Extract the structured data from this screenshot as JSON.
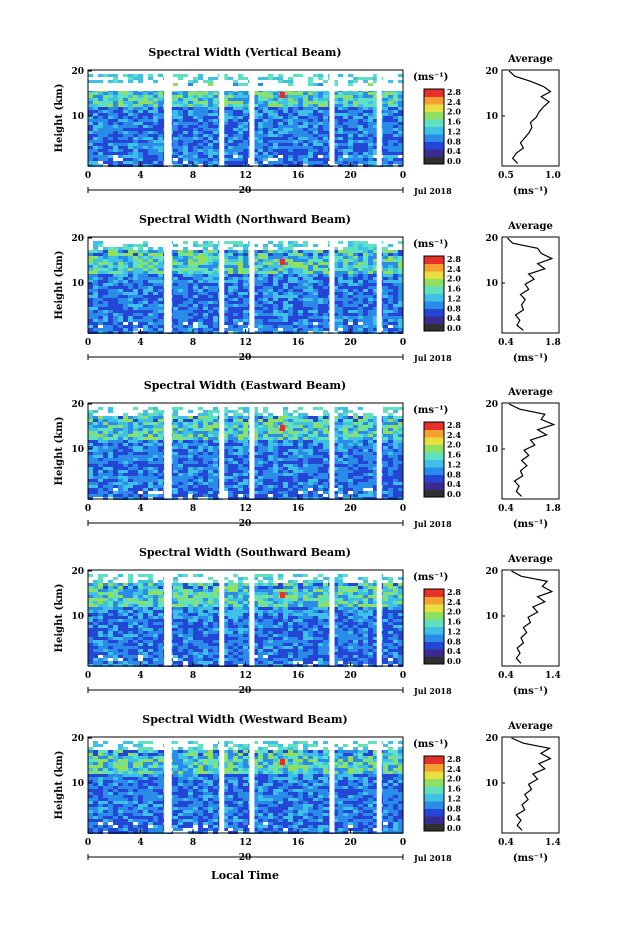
{
  "chart_data": {
    "type": "heatmap",
    "common": {
      "xlabel": "Local Time",
      "ylabel": "Height (km)",
      "x_ticks": [
        "0",
        "4",
        "8",
        "12",
        "16",
        "20",
        "0"
      ],
      "y_ticks": [
        "10",
        "20"
      ],
      "date_label": "Jul 2018",
      "date_tick": "20",
      "colorbar_unit": "(ms⁻¹)",
      "colorbar_ticks": [
        "0.0",
        "0.4",
        "0.8",
        "1.2",
        "1.6",
        "2.0",
        "2.4",
        "2.8"
      ],
      "average_title": "Average",
      "average_xlabel": "(ms⁻¹)",
      "average_yticks": [
        "10",
        "20"
      ],
      "colors": {
        "low": "#1f3cc8",
        "mid": "#3fb3e6",
        "high": "#f5e84a",
        "max": "#e8302a",
        "colorbar_stops": [
          "#303030",
          "#3b2a8f",
          "#2545d6",
          "#2a8be8",
          "#3fc0e6",
          "#5fe0c0",
          "#8fe060",
          "#e8e040",
          "#f5a030",
          "#e8302a"
        ]
      },
      "data_gaps_hours": [
        5.8,
        6.0,
        10.0,
        12.3,
        18.4,
        22.0
      ]
    },
    "panels": [
      {
        "title": "Spectral Width (Vertical Beam)",
        "avg_xticks": [
          "0.5",
          "1.0"
        ],
        "avg_xlim": [
          0.4,
          1.2
        ],
        "avg_profile": [
          [
            0.62,
            2
          ],
          [
            0.55,
            3
          ],
          [
            0.6,
            4
          ],
          [
            0.7,
            5
          ],
          [
            0.66,
            6
          ],
          [
            0.72,
            7
          ],
          [
            0.78,
            8
          ],
          [
            0.82,
            9
          ],
          [
            0.8,
            10
          ],
          [
            0.88,
            11
          ],
          [
            0.92,
            12
          ],
          [
            0.98,
            13
          ],
          [
            1.06,
            14
          ],
          [
            0.95,
            15
          ],
          [
            1.08,
            16
          ],
          [
            0.98,
            17
          ],
          [
            0.8,
            18
          ],
          [
            0.58,
            19
          ],
          [
            0.5,
            20
          ]
        ]
      },
      {
        "title": "Spectral Width (Northward Beam)",
        "avg_xticks": [
          "0.4",
          "1.8"
        ],
        "avg_xlim": [
          0.3,
          1.9
        ],
        "avg_profile": [
          [
            0.9,
            2
          ],
          [
            0.72,
            3
          ],
          [
            0.8,
            4
          ],
          [
            0.68,
            5
          ],
          [
            0.9,
            6
          ],
          [
            0.85,
            7
          ],
          [
            0.95,
            8
          ],
          [
            0.82,
            9
          ],
          [
            1.05,
            10
          ],
          [
            0.95,
            11
          ],
          [
            1.2,
            12
          ],
          [
            1.05,
            13
          ],
          [
            1.5,
            14
          ],
          [
            1.3,
            15
          ],
          [
            1.7,
            16
          ],
          [
            1.4,
            17
          ],
          [
            1.3,
            18
          ],
          [
            0.6,
            19
          ],
          [
            0.45,
            20
          ]
        ]
      },
      {
        "title": "Spectral Width (Eastward Beam)",
        "avg_xticks": [
          "0.4",
          "1.8"
        ],
        "avg_xlim": [
          0.3,
          1.9
        ],
        "avg_profile": [
          [
            0.85,
            2
          ],
          [
            0.7,
            3
          ],
          [
            0.78,
            4
          ],
          [
            0.65,
            5
          ],
          [
            0.88,
            6
          ],
          [
            0.82,
            7
          ],
          [
            1.0,
            8
          ],
          [
            0.85,
            9
          ],
          [
            1.05,
            10
          ],
          [
            0.92,
            11
          ],
          [
            1.22,
            12
          ],
          [
            1.1,
            13
          ],
          [
            1.55,
            14
          ],
          [
            1.3,
            15
          ],
          [
            1.75,
            16
          ],
          [
            1.4,
            17
          ],
          [
            1.5,
            18
          ],
          [
            0.8,
            19
          ],
          [
            0.5,
            20
          ]
        ]
      },
      {
        "title": "Spectral Width (Southward Beam)",
        "avg_xticks": [
          "0.4",
          "1.4"
        ],
        "avg_xlim": [
          0.3,
          1.5
        ],
        "avg_profile": [
          [
            0.7,
            2
          ],
          [
            0.6,
            3
          ],
          [
            0.68,
            4
          ],
          [
            0.62,
            5
          ],
          [
            0.75,
            6
          ],
          [
            0.7,
            7
          ],
          [
            0.82,
            8
          ],
          [
            0.75,
            9
          ],
          [
            0.9,
            10
          ],
          [
            0.85,
            11
          ],
          [
            1.05,
            12
          ],
          [
            0.95,
            13
          ],
          [
            1.2,
            14
          ],
          [
            1.05,
            15
          ],
          [
            1.35,
            16
          ],
          [
            1.15,
            17
          ],
          [
            1.25,
            18
          ],
          [
            0.7,
            19
          ],
          [
            0.5,
            20
          ]
        ]
      },
      {
        "title": "Spectral Width (Westward Beam)",
        "avg_xticks": [
          "0.4",
          "1.4"
        ],
        "avg_xlim": [
          0.3,
          1.5
        ],
        "avg_profile": [
          [
            0.72,
            2
          ],
          [
            0.62,
            3
          ],
          [
            0.7,
            4
          ],
          [
            0.6,
            5
          ],
          [
            0.78,
            6
          ],
          [
            0.72,
            7
          ],
          [
            0.85,
            8
          ],
          [
            0.78,
            9
          ],
          [
            0.92,
            10
          ],
          [
            0.86,
            11
          ],
          [
            1.05,
            12
          ],
          [
            0.95,
            13
          ],
          [
            1.2,
            14
          ],
          [
            1.08,
            15
          ],
          [
            1.32,
            16
          ],
          [
            1.12,
            17
          ],
          [
            1.3,
            18
          ],
          [
            0.75,
            19
          ],
          [
            0.5,
            20
          ]
        ]
      }
    ]
  }
}
